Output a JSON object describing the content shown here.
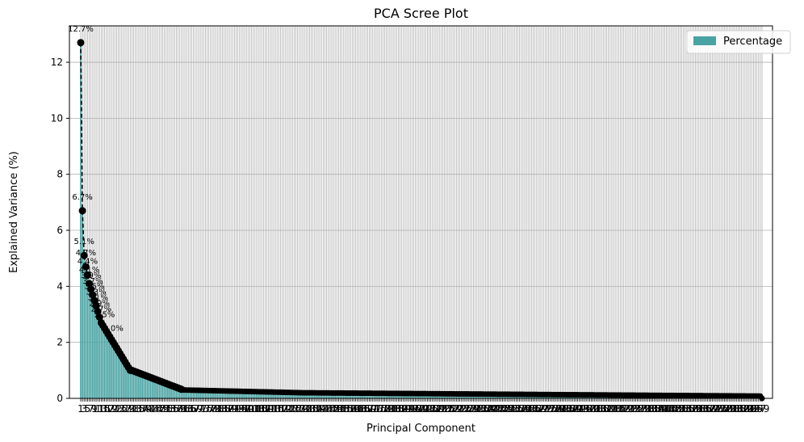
{
  "chart_data": {
    "type": "bar",
    "title": "PCA Scree Plot",
    "xlabel": "Principal Component",
    "ylabel": "Explained Variance (%)",
    "ylim": [
      0,
      13.3
    ],
    "yticks": [
      0,
      2,
      4,
      6,
      8,
      10,
      12
    ],
    "grid": true,
    "legend": {
      "placement": "top-right",
      "entries": [
        "Percentage"
      ]
    },
    "n_components": 400,
    "leading_values": [
      12.7,
      6.7,
      5.1,
      4.7,
      4.4,
      4.1,
      3.9,
      3.7,
      3.5,
      3.3,
      3.1,
      2.9,
      2.7,
      2.6,
      2.5,
      2.4,
      2.3,
      2.2,
      2.1,
      2.0,
      1.9,
      1.8,
      1.7,
      1.6,
      1.5,
      1.4,
      1.3,
      1.2,
      1.1,
      1.0
    ],
    "tail_value": 0.2,
    "final_value": 0.0,
    "labeled_points": [
      {
        "index": 0,
        "label": "12.7%"
      },
      {
        "index": 1,
        "label": "6.7%"
      },
      {
        "index": 2,
        "label": "5.1%"
      },
      {
        "index": 3,
        "label": "4.7%"
      },
      {
        "index": 4,
        "label": "4.4%"
      },
      {
        "index": 5,
        "label": "4.1%"
      },
      {
        "index": 6,
        "label": "3.9%"
      },
      {
        "index": 7,
        "label": "3.7%"
      },
      {
        "index": 8,
        "label": "3.5%"
      },
      {
        "index": 9,
        "label": "3.3%"
      },
      {
        "index": 10,
        "label": "3.1%"
      },
      {
        "index": 11,
        "label": "2.9%"
      },
      {
        "index": 12,
        "label": "2.7%"
      },
      {
        "index": 14,
        "label": "2.5%"
      },
      {
        "index": 19,
        "label": "2.0%"
      }
    ],
    "bar_color": "#4aa3a3",
    "line_color": "#000000"
  }
}
